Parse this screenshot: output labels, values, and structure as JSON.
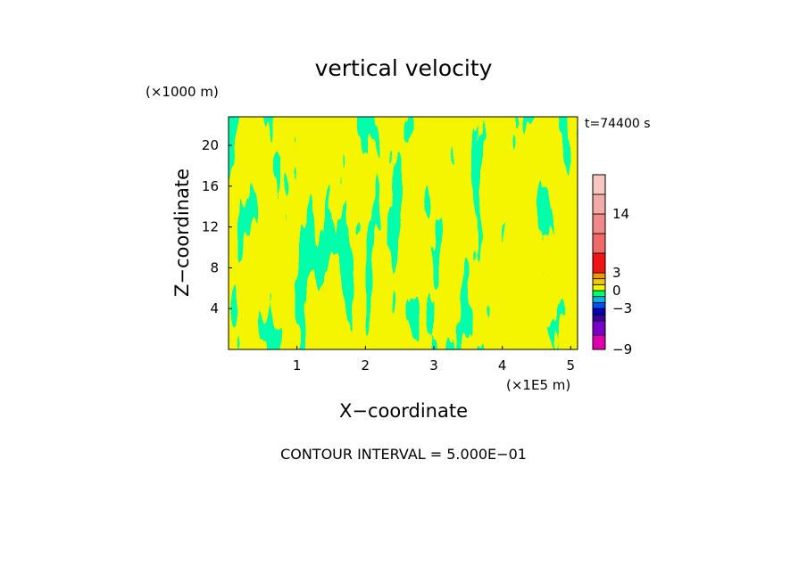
{
  "chart_data": {
    "type": "heatmap",
    "title": "vertical velocity",
    "xlabel": "X−coordinate",
    "ylabel": "Z−coordinate",
    "x_unit": "(×1E5 m)",
    "y_unit": "(×1000 m)",
    "time_label": "t=74400 s",
    "footer": "CONTOUR INTERVAL = 5.000E−01",
    "xlim": [
      0,
      5.1
    ],
    "ylim": [
      0,
      22.8
    ],
    "xticks": [
      1,
      2,
      3,
      4,
      5
    ],
    "yticks": [
      4,
      8,
      12,
      16,
      20
    ],
    "dominant_field_colors": {
      "positive": "#f5f500",
      "negative": "#00ff66"
    },
    "colorbar": {
      "ticks": [
        {
          "label": "14",
          "value": 14
        },
        {
          "label": "3",
          "value": 3
        },
        {
          "label": "0",
          "value": 0
        },
        {
          "label": "−3",
          "value": -3
        },
        {
          "label": "−9",
          "value": -9
        }
      ],
      "bands": [
        {
          "from": -9,
          "to": -7,
          "color": "#e000b0"
        },
        {
          "from": -7,
          "to": -5,
          "color": "#7a00c8"
        },
        {
          "from": -5,
          "to": -4,
          "color": "#3a00a0"
        },
        {
          "from": -4,
          "to": -3,
          "color": "#0000b4"
        },
        {
          "from": -3,
          "to": -2,
          "color": "#0050f0"
        },
        {
          "from": -2,
          "to": -1,
          "color": "#00b4f0"
        },
        {
          "from": -1,
          "to": 0,
          "color": "#00ff66"
        },
        {
          "from": 0,
          "to": 1,
          "color": "#f5f500"
        },
        {
          "from": 1,
          "to": 2,
          "color": "#f0c800"
        },
        {
          "from": 2,
          "to": 3,
          "color": "#f09600"
        },
        {
          "from": 3,
          "to": 6,
          "color": "#f01414"
        },
        {
          "from": 6,
          "to": 10,
          "color": "#f06a6a"
        },
        {
          "from": 10,
          "to": 14,
          "color": "#f08a8a"
        },
        {
          "from": 14,
          "to": 18,
          "color": "#f5aaaa"
        },
        {
          "from": 18,
          "to": 20,
          "color": "#f8c8c0"
        }
      ]
    }
  }
}
